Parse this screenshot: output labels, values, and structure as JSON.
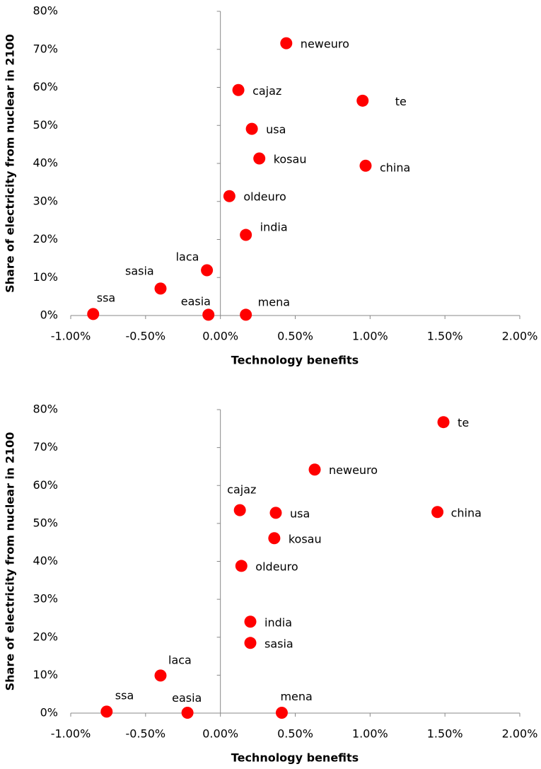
{
  "chart_data": [
    {
      "type": "scatter",
      "xlabel": "Technology benefits",
      "ylabel": "Share of electricity from nuclear in 2100",
      "color": "#ff0000",
      "labels": [
        "neweuro",
        "cajaz",
        "te",
        "usa",
        "kosau",
        "china",
        "oldeuro",
        "india",
        "laca",
        "sasia",
        "ssa",
        "easia",
        "mena"
      ],
      "x": [
        0.44,
        0.12,
        0.95,
        0.21,
        0.26,
        0.97,
        0.06,
        0.17,
        -0.09,
        -0.4,
        -0.85,
        -0.08,
        0.17
      ],
      "y": [
        71.6,
        59.3,
        56.5,
        49.1,
        41.3,
        39.4,
        31.4,
        21.2,
        11.9,
        7.1,
        0.4,
        0.2,
        0.2
      ],
      "xlim": [
        -1,
        2
      ],
      "ylim": [
        0,
        80
      ],
      "xticks": [
        {
          "value": -1,
          "label": "-1.00%"
        },
        {
          "value": -0.5,
          "label": "-0.50%"
        },
        {
          "value": 0,
          "label": "0.00%"
        },
        {
          "value": 0.5,
          "label": "0.50%"
        },
        {
          "value": 1,
          "label": "1.00%"
        },
        {
          "value": 1.5,
          "label": "1.50%"
        },
        {
          "value": 2,
          "label": "2.00%"
        }
      ],
      "yticks": [
        {
          "value": 0,
          "label": "0%"
        },
        {
          "value": 10,
          "label": "10%"
        },
        {
          "value": 20,
          "label": "20%"
        },
        {
          "value": 30,
          "label": "30%"
        },
        {
          "value": 40,
          "label": "40%"
        },
        {
          "value": 50,
          "label": "50%"
        },
        {
          "value": 60,
          "label": "60%"
        },
        {
          "value": 70,
          "label": "70%"
        },
        {
          "value": 80,
          "label": "80%"
        }
      ]
    },
    {
      "type": "scatter",
      "xlabel": "Technology benefits",
      "ylabel": "Share of electricity from nuclear in 2100",
      "color": "#ff0000",
      "labels": [
        "te",
        "neweuro",
        "cajaz",
        "usa",
        "china",
        "kosau",
        "oldeuro",
        "india",
        "sasia",
        "laca",
        "ssa",
        "easia",
        "mena"
      ],
      "x": [
        1.49,
        0.63,
        0.13,
        0.37,
        1.45,
        0.36,
        0.14,
        0.2,
        0.2,
        -0.4,
        -0.76,
        -0.22,
        0.41
      ],
      "y": [
        76.7,
        64.2,
        53.5,
        52.8,
        53.0,
        46.1,
        38.8,
        24.1,
        18.5,
        9.9,
        0.4,
        0.1,
        0.1
      ],
      "xlim": [
        -1,
        2
      ],
      "ylim": [
        0,
        80
      ],
      "xticks": [
        {
          "value": -1,
          "label": "-1.00%"
        },
        {
          "value": -0.5,
          "label": "-0.50%"
        },
        {
          "value": 0,
          "label": "0.00%"
        },
        {
          "value": 0.5,
          "label": "0.50%"
        },
        {
          "value": 1,
          "label": "1.00%"
        },
        {
          "value": 1.5,
          "label": "1.50%"
        },
        {
          "value": 2,
          "label": "2.00%"
        }
      ],
      "yticks": [
        {
          "value": 0,
          "label": "0%"
        },
        {
          "value": 10,
          "label": "10%"
        },
        {
          "value": 20,
          "label": "20%"
        },
        {
          "value": 30,
          "label": "30%"
        },
        {
          "value": 40,
          "label": "40%"
        },
        {
          "value": 50,
          "label": "50%"
        },
        {
          "value": 60,
          "label": "60%"
        },
        {
          "value": 70,
          "label": "70%"
        },
        {
          "value": 80,
          "label": "80%"
        }
      ]
    }
  ]
}
